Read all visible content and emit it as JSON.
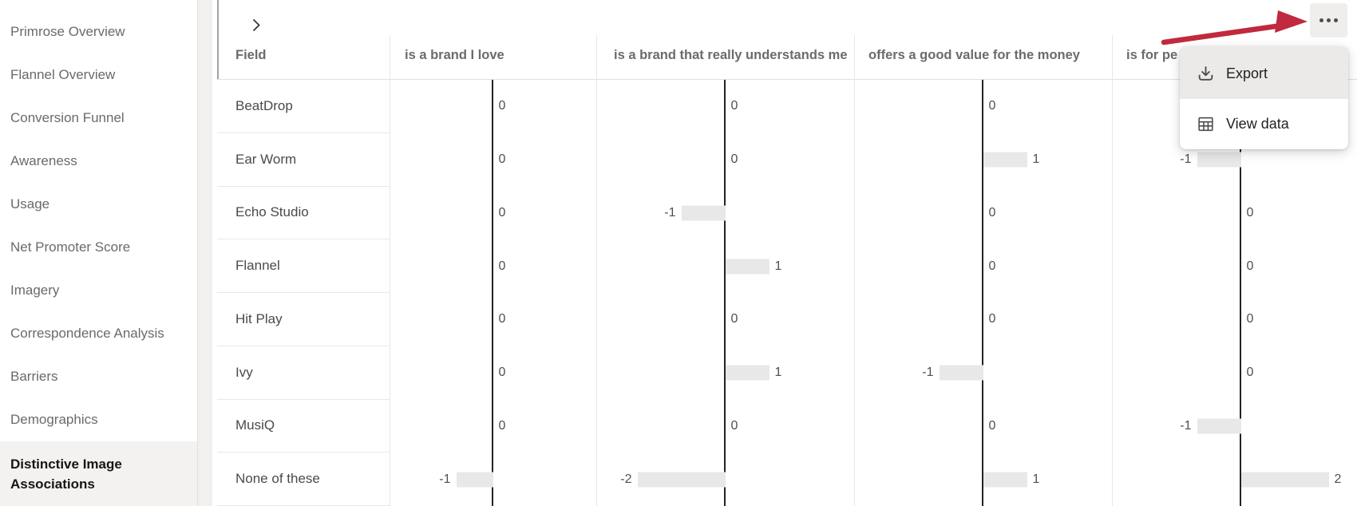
{
  "sidebar": {
    "items": [
      "Primrose Overview",
      "Flannel Overview",
      "Conversion Funnel",
      "Awareness",
      "Usage",
      "Net Promoter Score",
      "Imagery",
      "Correspondence Analysis",
      "Barriers",
      "Demographics"
    ],
    "selected_item": "Distinctive Image Associations"
  },
  "toolbar": {
    "collapse_icon": "chevron-right-icon",
    "more_options_icon": "ellipsis-icon"
  },
  "menu": {
    "items": [
      {
        "icon": "download-icon",
        "label": "Export"
      },
      {
        "icon": "table-icon",
        "label": "View data"
      }
    ]
  },
  "table": {
    "columns": [
      {
        "label": "Field"
      },
      {
        "label": "is a brand I love"
      },
      {
        "label": "is a brand that really understands me"
      },
      {
        "label": "offers a good value for the money"
      },
      {
        "label": "is for pe"
      }
    ],
    "rows": [
      {
        "field": "BeatDrop",
        "values": [
          0,
          0,
          0,
          null
        ]
      },
      {
        "field": "Ear Worm",
        "values": [
          0,
          0,
          1,
          -1
        ]
      },
      {
        "field": "Echo Studio",
        "values": [
          0,
          -1,
          0,
          0
        ]
      },
      {
        "field": "Flannel",
        "values": [
          0,
          1,
          0,
          0
        ]
      },
      {
        "field": "Hit Play",
        "values": [
          0,
          0,
          0,
          0
        ]
      },
      {
        "field": "Ivy",
        "values": [
          0,
          1,
          -1,
          0
        ]
      },
      {
        "field": "MusiQ",
        "values": [
          0,
          0,
          0,
          -1
        ]
      },
      {
        "field": "None of these",
        "values": [
          -1,
          -2,
          1,
          2
        ]
      }
    ]
  },
  "colors": {
    "arrow": "#c0293e",
    "bar_fill": "#e8e8e8",
    "axis": "#232323",
    "selected_bg": "#f3f2f0",
    "menu_hover": "#eceae9"
  }
}
